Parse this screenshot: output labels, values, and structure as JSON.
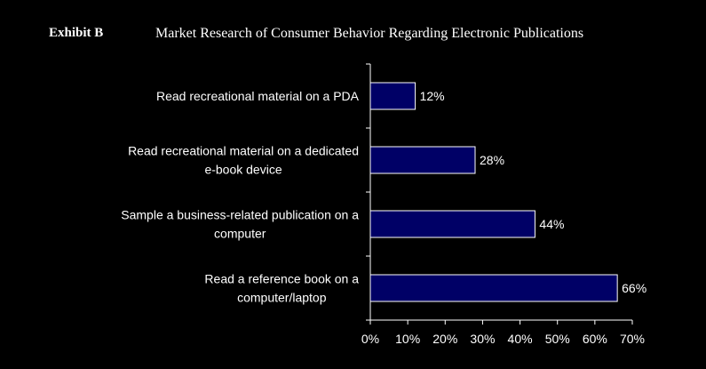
{
  "header": {
    "exhibit": "Exhibit B",
    "title": "Market Research of Consumer Behavior Regarding Electronic Publications"
  },
  "colors": {
    "background": "#000000",
    "bar_fill": "#000066",
    "bar_stroke": "#ffffff",
    "text": "#ffffff"
  },
  "chart_data": {
    "type": "bar",
    "orientation": "horizontal",
    "title": "Market Research of Consumer Behavior Regarding Electronic Publications",
    "xlabel": "",
    "ylabel": "",
    "xlim": [
      0,
      70
    ],
    "x_ticks": [
      "0%",
      "10%",
      "20%",
      "30%",
      "40%",
      "50%",
      "60%",
      "70%"
    ],
    "grid": false,
    "legend": "none",
    "categories": [
      [
        "Read recreational material on a PDA"
      ],
      [
        "Read recreational material on a dedicated",
        "e-book device"
      ],
      [
        "Sample a business-related publication on a",
        "computer"
      ],
      [
        "Read a reference book on a",
        "computer/laptop"
      ]
    ],
    "values": [
      12,
      28,
      44,
      66
    ],
    "value_labels": [
      "12%",
      "28%",
      "44%",
      "66%"
    ]
  }
}
